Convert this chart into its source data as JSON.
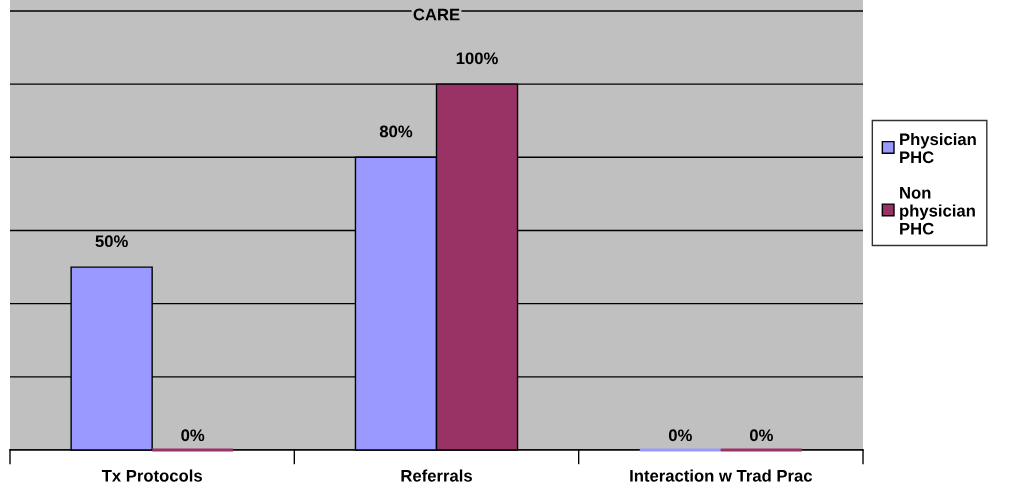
{
  "chart_data": {
    "type": "bar",
    "title": "CARE",
    "categories": [
      "Tx Protocols",
      "Referrals",
      "Interaction w Trad Prac"
    ],
    "series": [
      {
        "name": "Physician PHC",
        "color": "#9999ff",
        "values": [
          50,
          80,
          0
        ],
        "value_labels": [
          "50%",
          "80%",
          "0%"
        ]
      },
      {
        "name": "Non physician PHC",
        "color": "#993366",
        "values": [
          0,
          100,
          0
        ],
        "value_labels": [
          "0%",
          "100%",
          "0%"
        ]
      }
    ],
    "ylim": [
      0,
      123
    ],
    "yticks": [
      {
        "value": 0,
        "label": null
      },
      {
        "value": 20,
        "label": null
      },
      {
        "value": 40,
        "label": null
      },
      {
        "value": 60,
        "label": null
      },
      {
        "value": 80,
        "label": null
      },
      {
        "value": 100,
        "label": null
      },
      {
        "value": 120,
        "label": null
      }
    ],
    "grid": "y",
    "legend": "right",
    "tick_labels": "x"
  }
}
